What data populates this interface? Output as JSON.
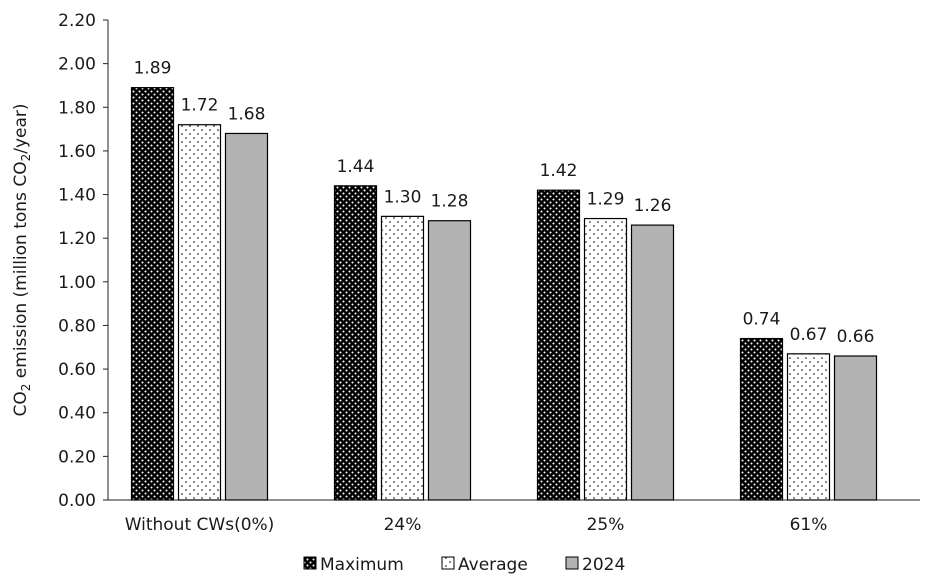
{
  "chart_data": {
    "type": "bar",
    "categories": [
      "Without CWs(0%)",
      "24%",
      "25%",
      "61%"
    ],
    "series": [
      {
        "name": "Maximum",
        "values": [
          1.89,
          1.44,
          1.42,
          0.74
        ],
        "labels": [
          "1.89",
          "1.44",
          "1.42",
          "0.74"
        ],
        "pattern": "dense-dots"
      },
      {
        "name": "Average",
        "values": [
          1.72,
          1.3,
          1.29,
          0.67
        ],
        "labels": [
          "1.72",
          "1.30",
          "1.29",
          "0.67"
        ],
        "pattern": "sparse-dots"
      },
      {
        "name": "2024",
        "values": [
          1.68,
          1.28,
          1.26,
          0.66
        ],
        "labels": [
          "1.68",
          "1.28",
          "1.26",
          "0.66"
        ],
        "pattern": "solid-gray"
      }
    ],
    "ylabel": {
      "prefix": "CO",
      "sub": "2",
      "middle": " emission (million tons CO",
      "sub2": "2",
      "suffix": "/year)"
    },
    "ylim": [
      0,
      2.2
    ],
    "yticks": [
      "0.00",
      "0.20",
      "0.40",
      "0.60",
      "0.80",
      "1.00",
      "1.20",
      "1.40",
      "1.60",
      "1.80",
      "2.00",
      "2.20"
    ],
    "ytick_values": [
      0,
      0.2,
      0.4,
      0.6,
      0.8,
      1.0,
      1.2,
      1.4,
      1.6,
      1.8,
      2.0,
      2.2
    ],
    "grid": false,
    "legend": "bottom",
    "colors": {
      "bar_stroke": "#000000",
      "gray_fill": "#b3b3b3",
      "axis": "#222222"
    }
  }
}
